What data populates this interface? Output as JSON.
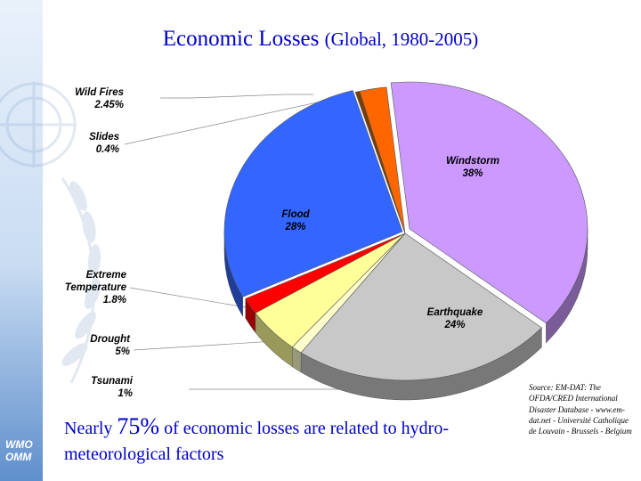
{
  "page": {
    "logo_text_line1": "WMO",
    "logo_text_line2": "OMM",
    "footnote_part1": "Nearly ",
    "footnote_pct": "75%",
    "footnote_part2": " of economic losses are related to hydro-meteorological factors",
    "source": "Source: EM-DAT: The OFDA/CRED International Disaster Database - www.em-dat.net - Université Catholique de Louvain - Brussels - Belgium"
  },
  "colors": {
    "title": "#0000cc",
    "windstorm": "#cc99ff",
    "earthquake": "#c8c8c8",
    "tsunami": "#ffffcc",
    "drought": "#ffff99",
    "extreme_temperature": "#ff0000",
    "flood": "#3366ff",
    "slides": "#7a3d00",
    "wild_fires": "#ff6600"
  },
  "chart_data": {
    "type": "pie",
    "style": "3d-exploded",
    "title": "Economic Losses",
    "subtitle": "(Global, 1980-2005)",
    "slices": [
      {
        "label": "Windstorm",
        "pct_text": "38%",
        "value": 38,
        "color": "#cc99ff"
      },
      {
        "label": "Earthquake",
        "pct_text": "24%",
        "value": 24,
        "color": "#c8c8c8"
      },
      {
        "label": "Tsunami",
        "pct_text": "1%",
        "value": 1,
        "color": "#ffffcc"
      },
      {
        "label": "Drought",
        "pct_text": "5%",
        "value": 5,
        "color": "#ffff99"
      },
      {
        "label": "Extreme Temperature",
        "pct_text": "1.8%",
        "value": 1.8,
        "color": "#ff0000"
      },
      {
        "label": "Flood",
        "pct_text": "28%",
        "value": 28,
        "color": "#3366ff"
      },
      {
        "label": "Slides",
        "pct_text": "0.4%",
        "value": 0.4,
        "color": "#7a3d00"
      },
      {
        "label": "Wild Fires",
        "pct_text": "2.45%",
        "value": 2.45,
        "color": "#ff6600"
      }
    ]
  }
}
